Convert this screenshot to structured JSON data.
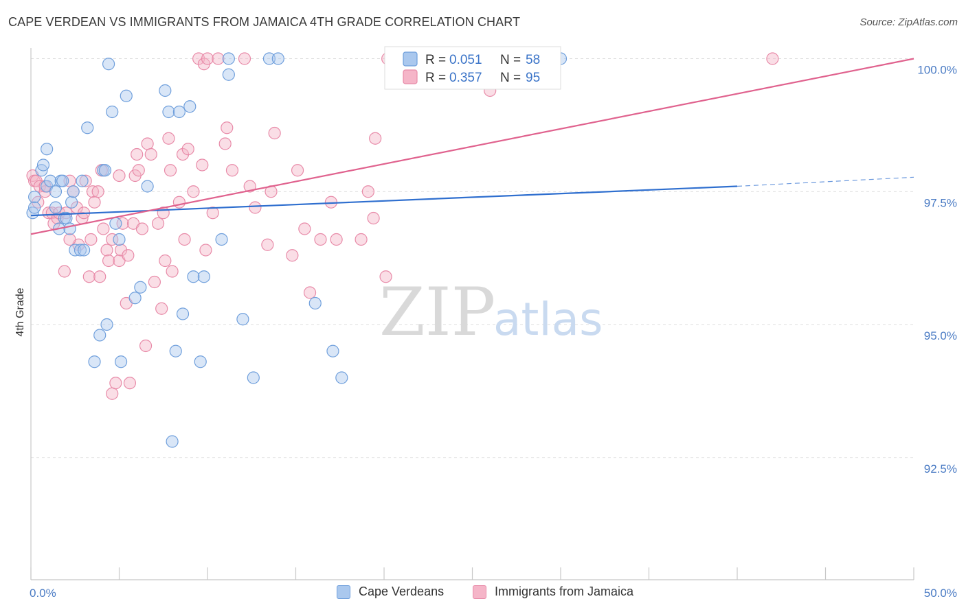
{
  "title": "CAPE VERDEAN VS IMMIGRANTS FROM JAMAICA 4TH GRADE CORRELATION CHART",
  "source": "Source: ZipAtlas.com",
  "watermark": {
    "zip": "ZIP",
    "atlas": "atlas"
  },
  "colors": {
    "blue_fill": "#aac8ee",
    "blue_stroke": "#6f9fdc",
    "blue_line": "#2f6fcf",
    "pink_fill": "#f5b5c8",
    "pink_stroke": "#e88aa8",
    "pink_line": "#e0628e",
    "tick_label": "#4a7bc4",
    "grid": "#dcdcdc"
  },
  "legend_top": {
    "rows": [
      {
        "r_label": "R = ",
        "r_value": "0.051",
        "n_label": "N = ",
        "n_value": "58",
        "series": "blue"
      },
      {
        "r_label": "R = ",
        "r_value": "0.357",
        "n_label": "N = ",
        "n_value": "95",
        "series": "pink"
      }
    ]
  },
  "legend_bottom": {
    "blue_label": "Cape Verdeans",
    "pink_label": "Immigrants from Jamaica"
  },
  "chart_data": {
    "type": "scatter",
    "title": "CAPE VERDEAN VS IMMIGRANTS FROM JAMAICA 4TH GRADE CORRELATION CHART",
    "xlabel": "",
    "ylabel": "4th Grade",
    "xlim": [
      0,
      50
    ],
    "ylim": [
      90.2,
      100.2
    ],
    "x_tick_labels": [
      "0.0%",
      "50.0%"
    ],
    "y_ticks": [
      92.5,
      95.0,
      97.5,
      100.0
    ],
    "y_tick_labels": [
      "92.5%",
      "95.0%",
      "97.5%",
      "100.0%"
    ],
    "grid": true,
    "legend_placement": "top-center",
    "series": [
      {
        "name": "Cape Verdeans",
        "color": "blue",
        "r": 0.051,
        "n": 58,
        "trend": {
          "x0": 0,
          "y0": 97.05,
          "x1": 40,
          "y1": 97.6,
          "dashed_to_x": 50,
          "dashed_to_y": 97.77
        },
        "points": [
          [
            0.1,
            97.1
          ],
          [
            0.2,
            97.2
          ],
          [
            0.2,
            97.4
          ],
          [
            0.6,
            97.9
          ],
          [
            0.7,
            98.0
          ],
          [
            0.9,
            98.3
          ],
          [
            0.9,
            97.6
          ],
          [
            1.1,
            97.7
          ],
          [
            1.4,
            97.5
          ],
          [
            1.4,
            97.2
          ],
          [
            1.6,
            96.8
          ],
          [
            1.7,
            97.7
          ],
          [
            1.8,
            97.7
          ],
          [
            1.9,
            97.0
          ],
          [
            2.0,
            97.0
          ],
          [
            2.2,
            96.8
          ],
          [
            2.3,
            97.3
          ],
          [
            2.4,
            97.5
          ],
          [
            2.5,
            96.4
          ],
          [
            2.8,
            96.4
          ],
          [
            2.9,
            97.7
          ],
          [
            3.0,
            96.4
          ],
          [
            3.2,
            98.7
          ],
          [
            3.6,
            94.3
          ],
          [
            3.9,
            94.8
          ],
          [
            4.1,
            97.9
          ],
          [
            4.2,
            97.9
          ],
          [
            4.3,
            95.0
          ],
          [
            4.4,
            99.9
          ],
          [
            4.6,
            99.0
          ],
          [
            4.8,
            96.9
          ],
          [
            5.0,
            96.6
          ],
          [
            5.1,
            94.3
          ],
          [
            5.4,
            99.3
          ],
          [
            5.9,
            95.5
          ],
          [
            6.2,
            95.7
          ],
          [
            6.6,
            97.6
          ],
          [
            7.6,
            99.4
          ],
          [
            7.8,
            99.0
          ],
          [
            8.0,
            92.8
          ],
          [
            8.2,
            94.5
          ],
          [
            8.4,
            99.0
          ],
          [
            8.6,
            95.2
          ],
          [
            9.0,
            99.1
          ],
          [
            9.2,
            95.9
          ],
          [
            9.6,
            94.3
          ],
          [
            9.8,
            95.9
          ],
          [
            10.8,
            96.6
          ],
          [
            11.2,
            100.0
          ],
          [
            11.2,
            99.7
          ],
          [
            12.0,
            95.1
          ],
          [
            12.6,
            94.0
          ],
          [
            13.5,
            100.0
          ],
          [
            14.0,
            100.0
          ],
          [
            16.1,
            95.4
          ],
          [
            17.1,
            94.5
          ],
          [
            17.6,
            94.0
          ],
          [
            30.0,
            100.0
          ]
        ]
      },
      {
        "name": "Immigrants from Jamaica",
        "color": "pink",
        "r": 0.357,
        "n": 95,
        "trend": {
          "x0": 0,
          "y0": 96.7,
          "x1": 50,
          "y1": 100.0
        },
        "points": [
          [
            0.1,
            97.8
          ],
          [
            0.2,
            97.7
          ],
          [
            0.3,
            97.7
          ],
          [
            0.5,
            97.6
          ],
          [
            0.8,
            97.5
          ],
          [
            0.8,
            97.6
          ],
          [
            1.0,
            97.1
          ],
          [
            1.2,
            97.1
          ],
          [
            1.3,
            96.9
          ],
          [
            1.5,
            97.0
          ],
          [
            1.6,
            97.1
          ],
          [
            1.9,
            96.0
          ],
          [
            2.0,
            97.1
          ],
          [
            2.2,
            97.7
          ],
          [
            2.4,
            97.5
          ],
          [
            2.6,
            97.2
          ],
          [
            2.7,
            96.5
          ],
          [
            2.9,
            97.0
          ],
          [
            3.0,
            97.1
          ],
          [
            3.1,
            97.7
          ],
          [
            3.3,
            95.9
          ],
          [
            3.4,
            96.6
          ],
          [
            3.5,
            97.5
          ],
          [
            3.6,
            97.3
          ],
          [
            3.8,
            97.5
          ],
          [
            3.9,
            95.9
          ],
          [
            4.0,
            97.9
          ],
          [
            4.1,
            96.8
          ],
          [
            4.3,
            96.4
          ],
          [
            4.4,
            96.2
          ],
          [
            4.6,
            93.7
          ],
          [
            4.6,
            96.6
          ],
          [
            4.8,
            93.9
          ],
          [
            5.0,
            97.8
          ],
          [
            5.0,
            96.2
          ],
          [
            5.1,
            96.4
          ],
          [
            5.2,
            96.9
          ],
          [
            5.4,
            95.4
          ],
          [
            5.5,
            96.3
          ],
          [
            5.6,
            93.9
          ],
          [
            5.8,
            96.9
          ],
          [
            5.9,
            97.8
          ],
          [
            6.0,
            98.2
          ],
          [
            6.1,
            97.9
          ],
          [
            6.3,
            96.8
          ],
          [
            6.5,
            94.6
          ],
          [
            6.6,
            98.4
          ],
          [
            6.8,
            98.2
          ],
          [
            7.0,
            95.8
          ],
          [
            7.2,
            96.9
          ],
          [
            7.4,
            95.3
          ],
          [
            7.5,
            97.1
          ],
          [
            7.6,
            96.2
          ],
          [
            7.8,
            98.5
          ],
          [
            7.9,
            97.9
          ],
          [
            8.0,
            96.0
          ],
          [
            8.4,
            97.3
          ],
          [
            8.6,
            98.2
          ],
          [
            8.7,
            96.6
          ],
          [
            8.9,
            98.3
          ],
          [
            9.2,
            97.5
          ],
          [
            9.5,
            100.0
          ],
          [
            9.7,
            98.0
          ],
          [
            9.8,
            99.9
          ],
          [
            10.0,
            100.0
          ],
          [
            9.9,
            96.4
          ],
          [
            10.3,
            97.1
          ],
          [
            10.6,
            100.0
          ],
          [
            11.0,
            98.4
          ],
          [
            11.1,
            98.7
          ],
          [
            11.4,
            97.9
          ],
          [
            12.1,
            100.0
          ],
          [
            12.4,
            97.6
          ],
          [
            12.7,
            97.2
          ],
          [
            13.4,
            96.5
          ],
          [
            13.6,
            97.5
          ],
          [
            13.8,
            98.6
          ],
          [
            14.8,
            96.3
          ],
          [
            15.1,
            97.9
          ],
          [
            15.5,
            96.8
          ],
          [
            15.8,
            95.6
          ],
          [
            16.4,
            96.6
          ],
          [
            17.0,
            97.3
          ],
          [
            17.3,
            96.6
          ],
          [
            18.7,
            96.6
          ],
          [
            19.1,
            97.5
          ],
          [
            19.4,
            97.0
          ],
          [
            19.5,
            98.5
          ],
          [
            20.1,
            95.9
          ],
          [
            20.2,
            100.0
          ],
          [
            23.0,
            100.0
          ],
          [
            26.0,
            99.4
          ],
          [
            42.0,
            100.0
          ],
          [
            0.4,
            97.3
          ],
          [
            2.2,
            96.6
          ]
        ]
      }
    ]
  }
}
